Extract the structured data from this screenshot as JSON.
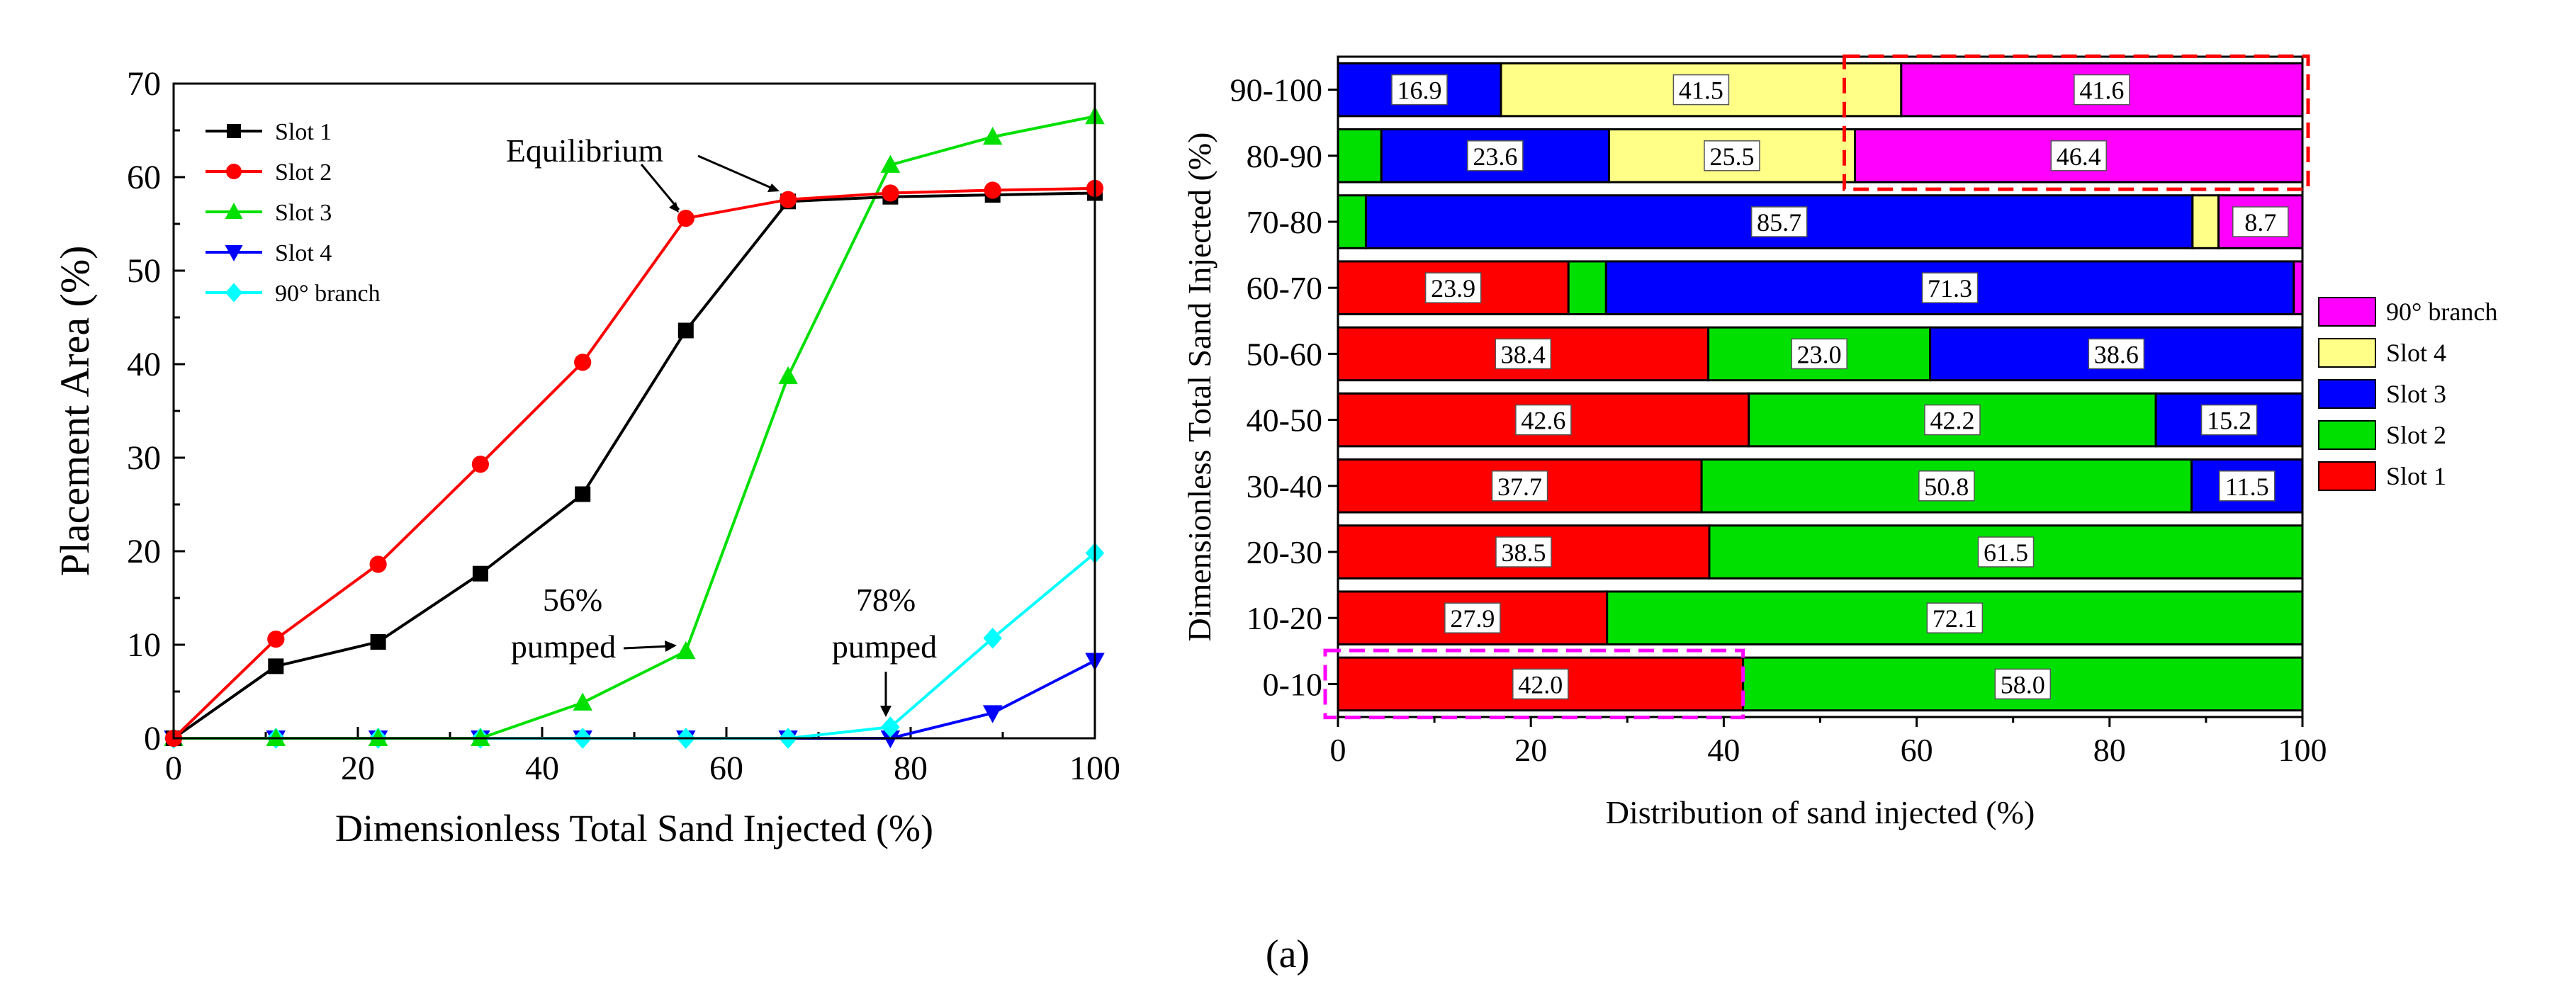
{
  "caption": "(a)",
  "chart_data": [
    {
      "type": "line",
      "xlabel": "Dimensionless Total Sand Injected (%)",
      "ylabel": "Placement Area (%)",
      "xlim": [
        0,
        100
      ],
      "ylim": [
        0,
        70
      ],
      "xticks": [
        "0",
        "20",
        "40",
        "60",
        "80",
        "100"
      ],
      "yticks": [
        "0",
        "10",
        "20",
        "30",
        "40",
        "50",
        "60",
        "70"
      ],
      "x": [
        0,
        11.1,
        22.2,
        33.3,
        44.4,
        55.6,
        66.7,
        77.8,
        88.9,
        100
      ],
      "series": [
        {
          "name": "Slot 1",
          "color": "#000000",
          "marker": "square",
          "values": [
            0,
            7.7,
            10.3,
            17.6,
            26.1,
            43.6,
            57.4,
            57.9,
            58.1,
            58.3
          ]
        },
        {
          "name": "Slot 2",
          "color": "#ff0000",
          "marker": "circle",
          "values": [
            0,
            10.6,
            18.6,
            29.3,
            40.2,
            55.6,
            57.6,
            58.3,
            58.6,
            58.8
          ]
        },
        {
          "name": "Slot 3",
          "color": "#00e000",
          "marker": "triangle-up",
          "values": [
            0,
            0,
            0,
            0,
            3.8,
            9.3,
            38.7,
            61.3,
            64.3,
            66.5
          ]
        },
        {
          "name": "Slot 4",
          "color": "#0000ff",
          "marker": "triangle-down",
          "values": [
            0,
            0,
            0,
            0,
            0,
            0,
            0,
            0,
            2.7,
            8.3
          ]
        },
        {
          "name": "90° branch",
          "color": "#00ffff",
          "marker": "diamond",
          "values": [
            0,
            0,
            0,
            0,
            0,
            0,
            0,
            1.2,
            10.7,
            19.8
          ]
        }
      ],
      "legend": "top-left",
      "annotations": [
        {
          "text": "Equilibrium"
        },
        {
          "lines": [
            "56%",
            "pumped"
          ]
        },
        {
          "lines": [
            "78%",
            "pumped"
          ]
        }
      ]
    },
    {
      "type": "bar",
      "orientation": "horizontal",
      "stacked": true,
      "xlabel": "Distribution of sand injected (%)",
      "ylabel": "Dimensionless Total Sand Injected (%)",
      "xlim": [
        0,
        100
      ],
      "xticks": [
        "0",
        "20",
        "40",
        "60",
        "80",
        "100"
      ],
      "categories": [
        "0-10",
        "10-20",
        "20-30",
        "30-40",
        "40-50",
        "50-60",
        "60-70",
        "70-80",
        "80-90",
        "90-100"
      ],
      "series": [
        {
          "name": "Slot 1",
          "color": "#ff0000",
          "values": [
            42.0,
            27.9,
            38.5,
            37.7,
            42.6,
            38.4,
            23.9,
            0,
            0,
            0
          ]
        },
        {
          "name": "Slot 2",
          "color": "#00e000",
          "values": [
            58.0,
            72.1,
            61.5,
            50.8,
            42.2,
            23.0,
            3.9,
            2.9,
            4.5,
            0
          ]
        },
        {
          "name": "Slot 3",
          "color": "#0000ff",
          "values": [
            0,
            0,
            0,
            11.5,
            15.2,
            38.6,
            71.3,
            85.7,
            23.6,
            16.9
          ]
        },
        {
          "name": "Slot 4",
          "color": "#ffff88",
          "values": [
            0,
            0,
            0,
            0,
            0,
            0,
            0,
            2.7,
            25.5,
            41.5
          ]
        },
        {
          "name": "90° branch",
          "color": "#ff00ff",
          "values": [
            0,
            0,
            0,
            0,
            0,
            0,
            0.9,
            8.7,
            46.4,
            41.6
          ]
        }
      ],
      "data_labels": [
        {
          "category": "0-10",
          "series": "Slot 1",
          "text": "42.0"
        },
        {
          "category": "0-10",
          "series": "Slot 2",
          "text": "58.0"
        },
        {
          "category": "10-20",
          "series": "Slot 1",
          "text": "27.9"
        },
        {
          "category": "10-20",
          "series": "Slot 2",
          "text": "72.1"
        },
        {
          "category": "20-30",
          "series": "Slot 1",
          "text": "38.5"
        },
        {
          "category": "20-30",
          "series": "Slot 2",
          "text": "61.5"
        },
        {
          "category": "30-40",
          "series": "Slot 1",
          "text": "37.7"
        },
        {
          "category": "30-40",
          "series": "Slot 2",
          "text": "50.8"
        },
        {
          "category": "30-40",
          "series": "Slot 3",
          "text": "11.5"
        },
        {
          "category": "40-50",
          "series": "Slot 1",
          "text": "42.6"
        },
        {
          "category": "40-50",
          "series": "Slot 2",
          "text": "42.2"
        },
        {
          "category": "40-50",
          "series": "Slot 3",
          "text": "15.2"
        },
        {
          "category": "50-60",
          "series": "Slot 1",
          "text": "38.4"
        },
        {
          "category": "50-60",
          "series": "Slot 2",
          "text": "23.0"
        },
        {
          "category": "50-60",
          "series": "Slot 3",
          "text": "38.6"
        },
        {
          "category": "60-70",
          "series": "Slot 1",
          "text": "23.9"
        },
        {
          "category": "60-70",
          "series": "Slot 3",
          "text": "71.3"
        },
        {
          "category": "70-80",
          "series": "Slot 3",
          "text": "85.7"
        },
        {
          "category": "70-80",
          "series": "90° branch",
          "text": "8.7"
        },
        {
          "category": "80-90",
          "series": "Slot 3",
          "text": "23.6"
        },
        {
          "category": "80-90",
          "series": "Slot 4",
          "text": "25.5"
        },
        {
          "category": "80-90",
          "series": "90° branch",
          "text": "46.4"
        },
        {
          "category": "90-100",
          "series": "Slot 3",
          "text": "16.9"
        },
        {
          "category": "90-100",
          "series": "Slot 4",
          "text": "41.5"
        },
        {
          "category": "90-100",
          "series": "90° branch",
          "text": "41.6"
        }
      ],
      "legend_order": [
        "90° branch",
        "Slot 4",
        "Slot 3",
        "Slot 2",
        "Slot 1"
      ],
      "legend": "right",
      "highlights": [
        {
          "color": "#ff0000",
          "style": "dashed",
          "categories": [
            "80-90",
            "90-100"
          ],
          "x_range": [
            52.5,
            100
          ]
        },
        {
          "color": "#ff00ff",
          "style": "dashed",
          "categories": [
            "0-10"
          ],
          "x_range": [
            0,
            42
          ]
        }
      ]
    }
  ]
}
